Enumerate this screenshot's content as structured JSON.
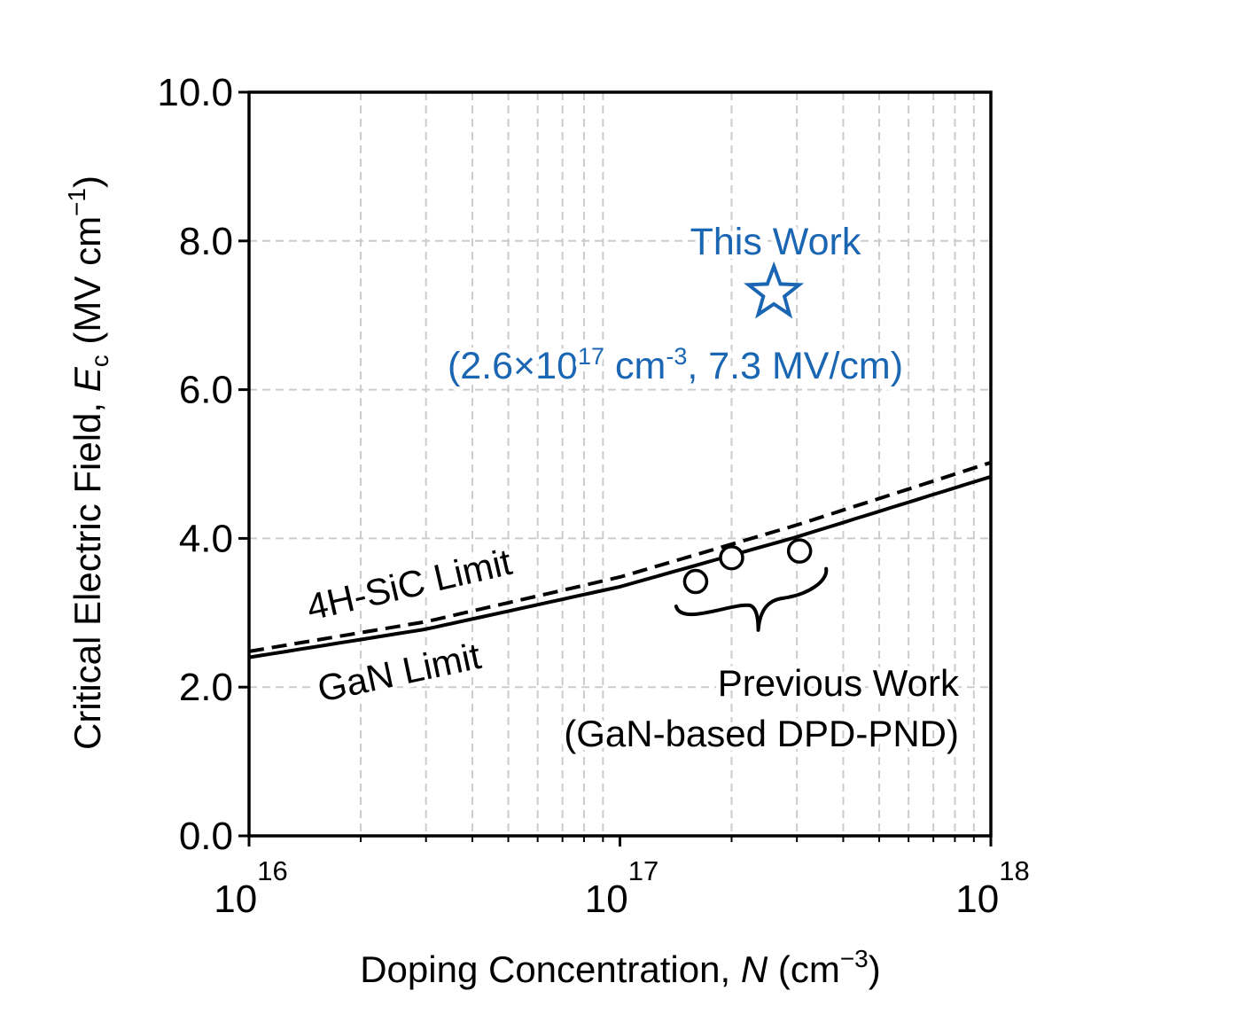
{
  "chart_data": {
    "type": "line",
    "xscale": "log",
    "xlim": [
      1e+16,
      1e+18
    ],
    "ylim": [
      0,
      10
    ],
    "grid": true,
    "x_ticks": [
      {
        "value": 1e+16,
        "base": "10",
        "exp": "16"
      },
      {
        "value": 1e+17,
        "base": "10",
        "exp": "17"
      },
      {
        "value": 1e+18,
        "base": "10",
        "exp": "18"
      }
    ],
    "y_ticks": [
      {
        "value": 0,
        "label": "0.0"
      },
      {
        "value": 2,
        "label": "2.0"
      },
      {
        "value": 4,
        "label": "4.0"
      },
      {
        "value": 6,
        "label": "6.0"
      },
      {
        "value": 8,
        "label": "8.0"
      },
      {
        "value": 10,
        "label": "10.0"
      }
    ],
    "xlabel": {
      "text": "Doping Concentration, ",
      "var": "N",
      "unit_open": " (cm",
      "unit_sup": "−3",
      "unit_close": ")"
    },
    "ylabel": {
      "text": "Critical Electric Field, ",
      "var": "E",
      "var_sub": "c",
      "unit_open": " (MV cm",
      "unit_sup": "−1",
      "unit_close": ")"
    },
    "series": [
      {
        "name": "4H-SiC Limit",
        "style": "dashed",
        "color": "#000000",
        "x": [
          1e+16,
          3e+16,
          1e+17,
          3e+17,
          1e+18
        ],
        "y": [
          2.48,
          2.88,
          3.48,
          4.18,
          5.02
        ]
      },
      {
        "name": "GaN Limit",
        "style": "solid",
        "color": "#000000",
        "x": [
          1e+16,
          3e+16,
          1e+17,
          3e+17,
          1e+18
        ],
        "y": [
          2.4,
          2.78,
          3.35,
          4.02,
          4.83
        ]
      },
      {
        "name": "Previous Work",
        "style": "markers",
        "marker": "circle",
        "color": "#000000",
        "x": [
          1.6e+17,
          2e+17,
          3.05e+17
        ],
        "y": [
          3.42,
          3.74,
          3.83
        ]
      },
      {
        "name": "This Work",
        "style": "markers",
        "marker": "star",
        "color": "#1a66b3",
        "x": [
          2.6e+17
        ],
        "y": [
          7.3
        ]
      }
    ],
    "annotations": {
      "sic_label": "4H-SiC Limit",
      "gan_label": "GaN Limit",
      "previous_line1": "Previous Work",
      "previous_line2": "(GaN-based DPD-PND)",
      "this_work": "This Work",
      "this_work_value": {
        "open": "(2.6×10",
        "exp1": "17",
        "mid": " cm",
        "exp2": "-3",
        "close": ", 7.3 MV/cm)"
      }
    }
  }
}
